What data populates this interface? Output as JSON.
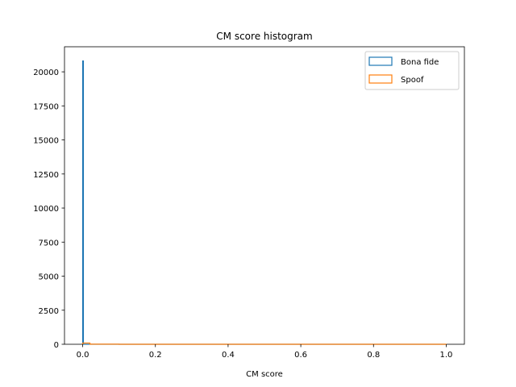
{
  "chart_data": {
    "type": "histogram",
    "title": "CM score histogram",
    "xlabel": "CM score",
    "ylabel": "",
    "xlim": [
      -0.05,
      1.05
    ],
    "ylim": [
      0,
      21840
    ],
    "xticks": [
      0.0,
      0.2,
      0.4,
      0.6,
      0.8,
      1.0
    ],
    "xtick_labels": [
      "0.0",
      "0.2",
      "0.4",
      "0.6",
      "0.8",
      "1.0"
    ],
    "yticks": [
      0,
      2500,
      5000,
      7500,
      10000,
      12500,
      15000,
      17500,
      20000
    ],
    "ytick_labels": [
      "0",
      "2500",
      "5000",
      "7500",
      "10000",
      "12500",
      "15000",
      "17500",
      "20000"
    ],
    "histtype": "step",
    "legend_position": "top-right",
    "grid": false,
    "series": [
      {
        "name": "Bona fide",
        "color": "#1f77b4",
        "bins": [
          {
            "x0": 0.0,
            "x1": 0.002,
            "count": 20800
          },
          {
            "x0": 0.002,
            "x1": 1.0,
            "count": 0
          }
        ]
      },
      {
        "name": "Spoof",
        "color": "#ff7f0e",
        "bins": [
          {
            "x0": 0.0,
            "x1": 0.02,
            "count": 90
          },
          {
            "x0": 0.02,
            "x1": 0.1,
            "count": 8
          },
          {
            "x0": 0.1,
            "x1": 1.0,
            "count": 2
          }
        ]
      }
    ]
  }
}
